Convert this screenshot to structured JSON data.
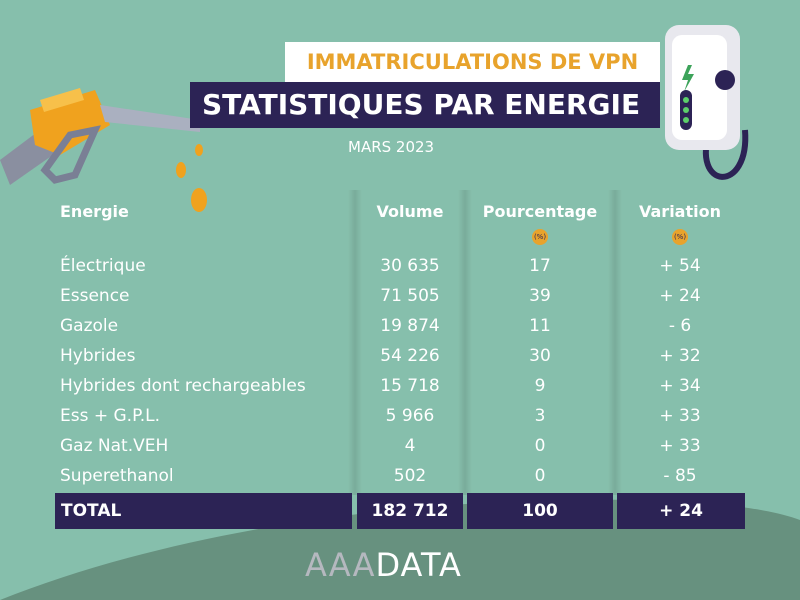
{
  "header": {
    "subtitle": "IMMATRICULATIONS DE VPN",
    "title": "STATISTIQUES PAR ENERGIE",
    "date": "MARS 2023"
  },
  "colors": {
    "background": "#86bfac",
    "dark": "#2c2355",
    "accent": "#e8a32c"
  },
  "table": {
    "headers": [
      "Energie",
      "Volume",
      "Pourcentage",
      "Variation"
    ],
    "unit": "(%)",
    "rows": [
      {
        "energie": "Électrique",
        "volume": "30 635",
        "pct": "17",
        "var": "+ 54"
      },
      {
        "energie": "Essence",
        "volume": "71 505",
        "pct": "39",
        "var": "+ 24"
      },
      {
        "energie": "Gazole",
        "volume": "19 874",
        "pct": "11",
        "var": "- 6"
      },
      {
        "energie": "Hybrides",
        "volume": "54 226",
        "pct": "30",
        "var": "+ 32"
      },
      {
        "energie": "Hybrides dont rechargeables",
        "volume": "15 718",
        "pct": "9",
        "var": "+ 34"
      },
      {
        "energie": "Ess + G.P.L.",
        "volume": "5 966",
        "pct": "3",
        "var": "+ 33"
      },
      {
        "energie": "Gaz Nat.VEH",
        "volume": "4",
        "pct": "0",
        "var": "+ 33"
      },
      {
        "energie": "Superethanol",
        "volume": "502",
        "pct": "0",
        "var": "- 85"
      }
    ],
    "total": {
      "label": "TOTAL",
      "volume": "182 712",
      "pct": "100",
      "var": "+ 24"
    }
  },
  "logo": {
    "part1": "AAA",
    "part2": "DATA"
  },
  "icons": [
    "fuel-nozzle-icon",
    "ev-charger-icon"
  ]
}
